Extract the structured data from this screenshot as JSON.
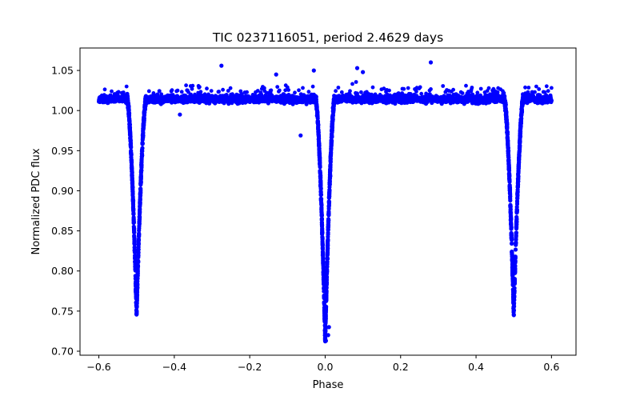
{
  "chart_data": {
    "type": "scatter",
    "title": "TIC 0237116051, period 2.4629 days",
    "xlabel": "Phase",
    "ylabel": "Normalized PDC flux",
    "xlim": [
      -0.65,
      0.665
    ],
    "ylim": [
      0.695,
      1.078
    ],
    "xticks": [
      -0.6,
      -0.4,
      -0.2,
      0.0,
      0.2,
      0.4,
      0.6
    ],
    "xtick_labels": [
      "−0.6",
      "−0.4",
      "−0.2",
      "0.0",
      "0.2",
      "0.4",
      "0.6"
    ],
    "yticks": [
      0.7,
      0.75,
      0.8,
      0.85,
      0.9,
      0.95,
      1.0,
      1.05
    ],
    "ytick_labels": [
      "0.70",
      "0.75",
      "0.80",
      "0.85",
      "0.90",
      "0.95",
      "1.00",
      "1.05"
    ],
    "marker_color": "#0000ff",
    "series": [
      {
        "name": "light curve",
        "baseline_flux": 1.014,
        "eclipses": [
          {
            "center": -0.5,
            "min_flux": 0.747,
            "half_width": 0.025
          },
          {
            "center": 0.0,
            "min_flux": 0.714,
            "half_width": 0.025
          },
          {
            "center": 0.5,
            "min_flux": 0.747,
            "half_width": 0.025
          }
        ],
        "outliers": [
          {
            "x": -0.385,
            "y": 0.995
          },
          {
            "x": -0.065,
            "y": 0.969
          },
          {
            "x": -0.275,
            "y": 1.056
          },
          {
            "x": 0.28,
            "y": 1.06
          },
          {
            "x": 0.085,
            "y": 1.053
          },
          {
            "x": 0.1,
            "y": 1.048
          },
          {
            "x": -0.03,
            "y": 1.05
          },
          {
            "x": -0.13,
            "y": 1.045
          },
          {
            "x": 0.008,
            "y": 0.72
          },
          {
            "x": 0.002,
            "y": 0.713
          },
          {
            "x": 0.01,
            "y": 0.73
          }
        ]
      }
    ]
  }
}
